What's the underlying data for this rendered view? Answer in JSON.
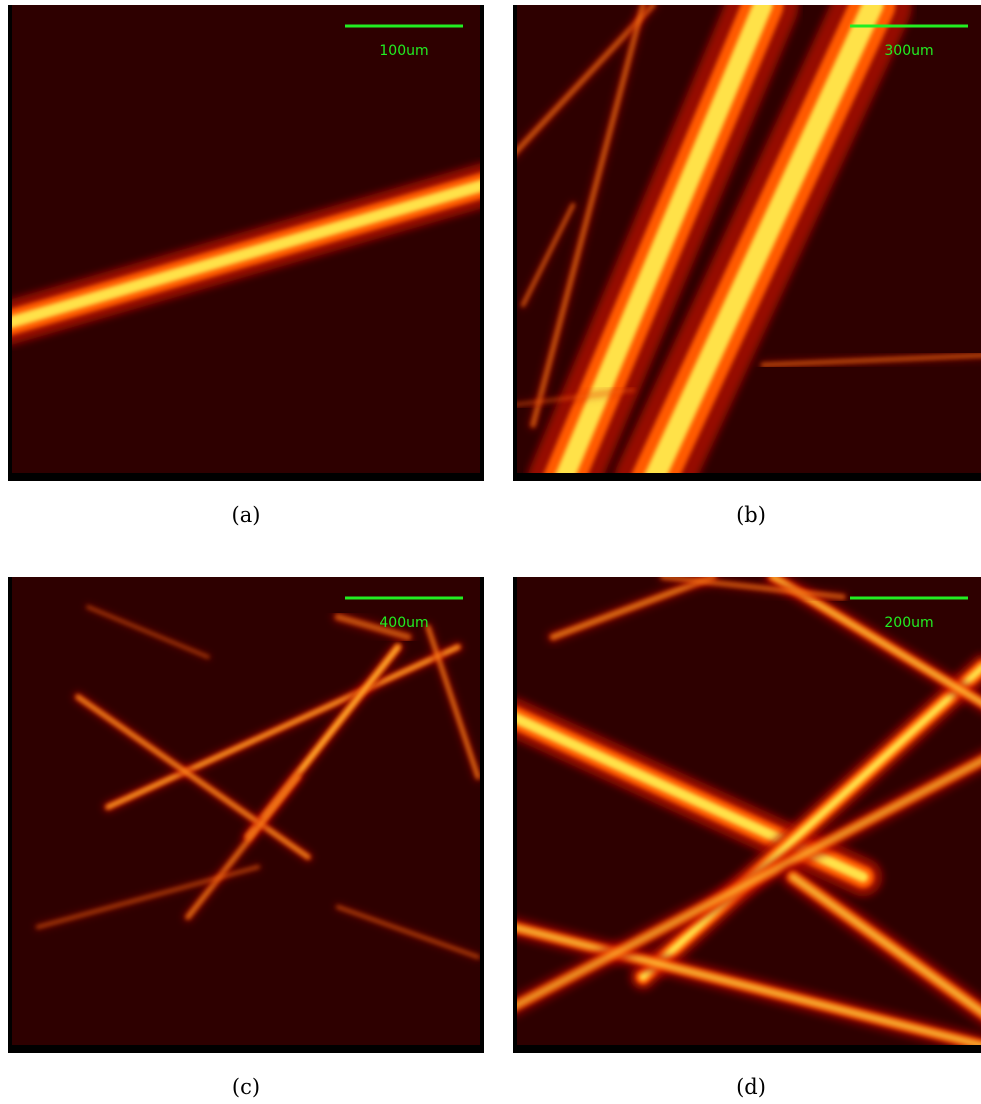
{
  "panels": [
    {
      "scale_label": "100um",
      "caption": "(a)"
    },
    {
      "scale_label": "300um",
      "caption": "(b)"
    },
    {
      "scale_label": "400um",
      "caption": "(c)"
    },
    {
      "scale_label": "200um",
      "caption": "(d)"
    }
  ]
}
